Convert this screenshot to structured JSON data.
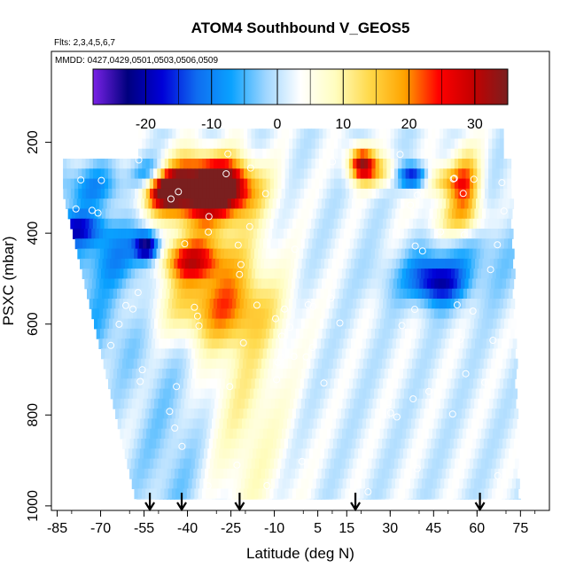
{
  "chart_data": {
    "type": "heatmap",
    "title": "ATOM4 Southbound V_GEOS5",
    "flights_note": "Flts: 2,3,4,5,6,7",
    "dates_note": "MMDD: 0427,0429,0501,0503,0506,0509",
    "xlabel": "Latitude (deg N)",
    "ylabel": "PSXC (mbar)",
    "xlim": [
      -87,
      85
    ],
    "ylim": [
      1010,
      0
    ],
    "x_ticks": [
      -85,
      -70,
      -55,
      -40,
      -25,
      -10,
      5,
      15,
      30,
      45,
      60,
      75
    ],
    "y_ticks": [
      200,
      400,
      600,
      800,
      1000
    ],
    "colorbar": {
      "range": [
        -28,
        35
      ],
      "ticks": [
        -20,
        -10,
        0,
        10,
        20,
        30
      ],
      "tick_labels": [
        "-20",
        "-10",
        "0",
        "10",
        "20",
        "30"
      ],
      "colors": [
        "#7a22e6",
        "#00007e",
        "#0000d8",
        "#0f6cf0",
        "#0aa2ff",
        "#9fd6ff",
        "#ffffff",
        "#fffdc0",
        "#ffd94a",
        "#ffa400",
        "#ff0000",
        "#c40000",
        "#7a1f1f"
      ]
    },
    "profile_arrows_lat": [
      -53,
      -42,
      -22,
      18,
      61
    ],
    "colors": {
      "grid": "#000000",
      "marker": "#ffffff"
    },
    "grid": false,
    "legend": "colorbar-top"
  }
}
